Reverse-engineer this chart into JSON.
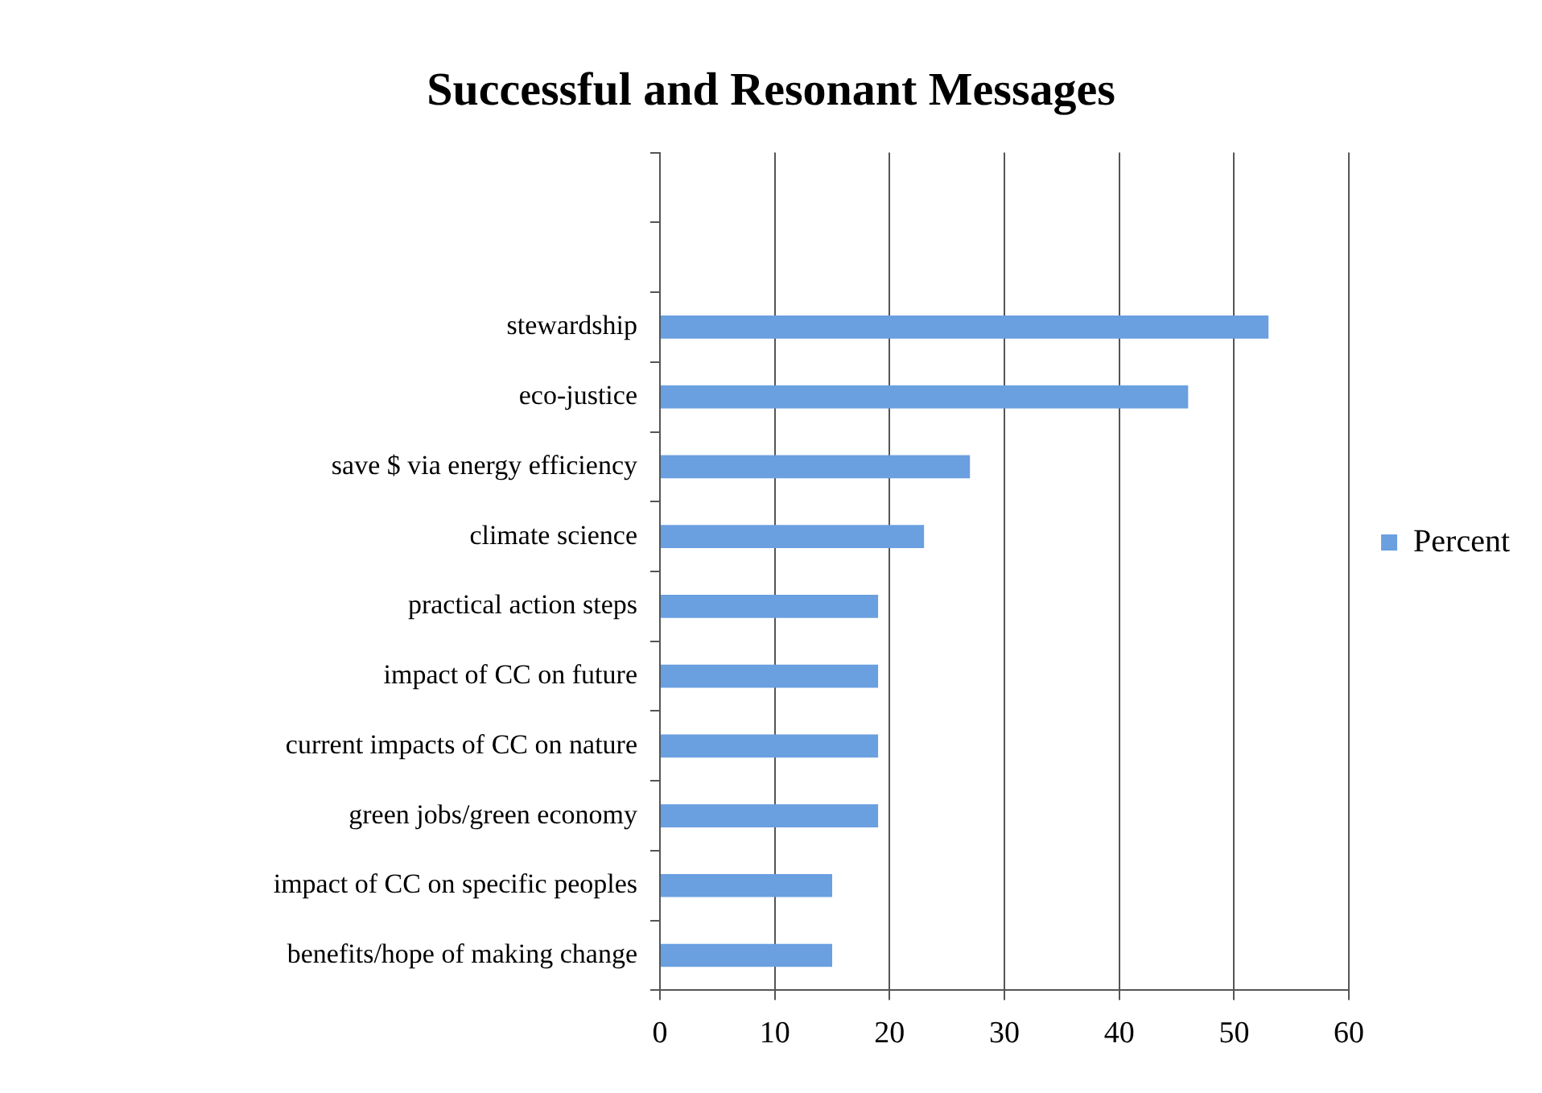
{
  "chart_data": {
    "type": "bar",
    "orientation": "horizontal",
    "title": "Successful and Resonant Messages",
    "categories": [
      null,
      null,
      "stewardship",
      "eco-justice",
      "save $ via energy efficiency",
      "climate science",
      "practical action steps",
      "impact of CC on future",
      "current impacts of CC on nature",
      "green jobs/green economy",
      "impact of CC on specific peoples",
      "benefits/hope of making change"
    ],
    "series": [
      {
        "name": "Percent",
        "color": "#6a9fe0",
        "values": [
          null,
          null,
          53,
          46,
          27,
          23,
          19,
          19,
          19,
          19,
          15,
          15
        ]
      }
    ],
    "xlim": [
      0,
      60
    ],
    "xticks": [
      0,
      10,
      20,
      30,
      40,
      50,
      60
    ],
    "grid": "x",
    "legend": "right"
  }
}
